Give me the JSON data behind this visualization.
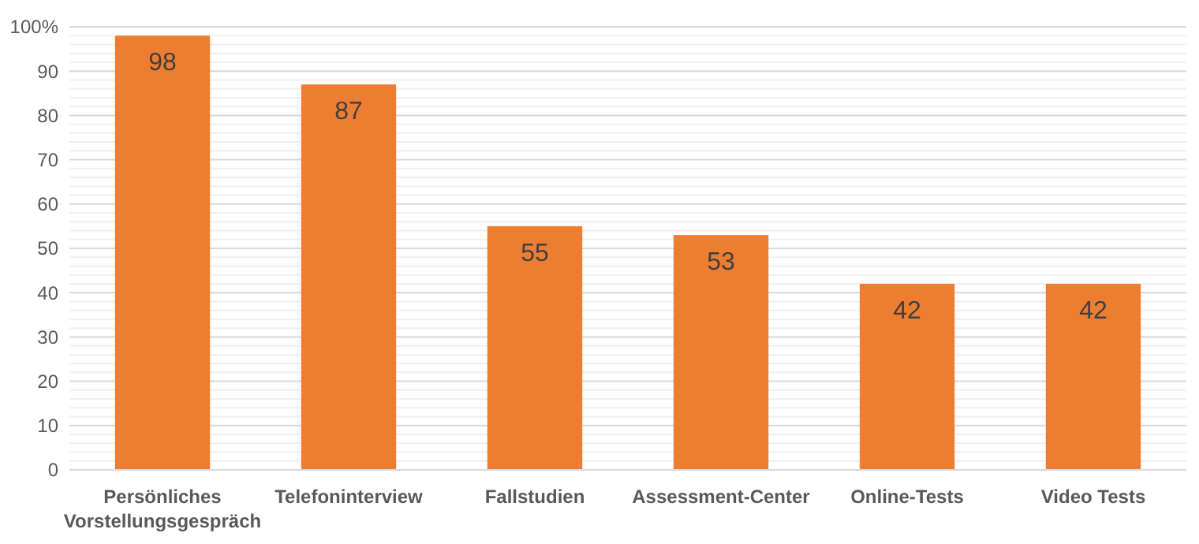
{
  "chart_data": {
    "type": "bar",
    "categories": [
      "Persönliches Vorstellungsgespräch",
      "Telefoninterview",
      "Fallstudien",
      "Assessment-Center",
      "Online-Tests",
      "Video Tests"
    ],
    "values": [
      98,
      87,
      55,
      53,
      42,
      42
    ],
    "color": "#ed7d31",
    "data_labels": true,
    "ylim": [
      0,
      100
    ],
    "yticks": [
      0,
      {
        "value": 2,
        "label": null
      },
      {
        "value": 4,
        "label": null
      },
      {
        "value": 6,
        "label": null
      },
      {
        "value": 8,
        "label": null
      },
      10,
      {
        "value": 12,
        "label": null
      },
      {
        "value": 14,
        "label": null
      },
      {
        "value": 16,
        "label": null
      },
      {
        "value": 18,
        "label": null
      },
      20,
      {
        "value": 22,
        "label": null
      },
      {
        "value": 24,
        "label": null
      },
      {
        "value": 26,
        "label": null
      },
      {
        "value": 28,
        "label": null
      },
      30,
      {
        "value": 32,
        "label": null
      },
      {
        "value": 34,
        "label": null
      },
      {
        "value": 36,
        "label": null
      },
      {
        "value": 38,
        "label": null
      },
      40,
      {
        "value": 42,
        "label": null
      },
      {
        "value": 44,
        "label": null
      },
      {
        "value": 46,
        "label": null
      },
      {
        "value": 48,
        "label": null
      },
      50,
      {
        "value": 52,
        "label": null
      },
      {
        "value": 54,
        "label": null
      },
      {
        "value": 56,
        "label": null
      },
      {
        "value": 58,
        "label": null
      },
      60,
      {
        "value": 62,
        "label": null
      },
      {
        "value": 64,
        "label": null
      },
      {
        "value": 66,
        "label": null
      },
      {
        "value": 68,
        "label": null
      },
      70,
      {
        "value": 72,
        "label": null
      },
      {
        "value": 74,
        "label": null
      },
      {
        "value": 76,
        "label": null
      },
      {
        "value": 78,
        "label": null
      },
      80,
      {
        "value": 82,
        "label": null
      },
      {
        "value": 84,
        "label": null
      },
      {
        "value": 86,
        "label": null
      },
      {
        "value": 88,
        "label": null
      },
      90,
      {
        "value": 92,
        "label": null
      },
      {
        "value": 94,
        "label": null
      },
      {
        "value": 96,
        "label": null
      },
      {
        "value": 98,
        "label": null
      },
      {
        "value": 100,
        "label": "100%"
      }
    ],
    "grid": "y"
  }
}
